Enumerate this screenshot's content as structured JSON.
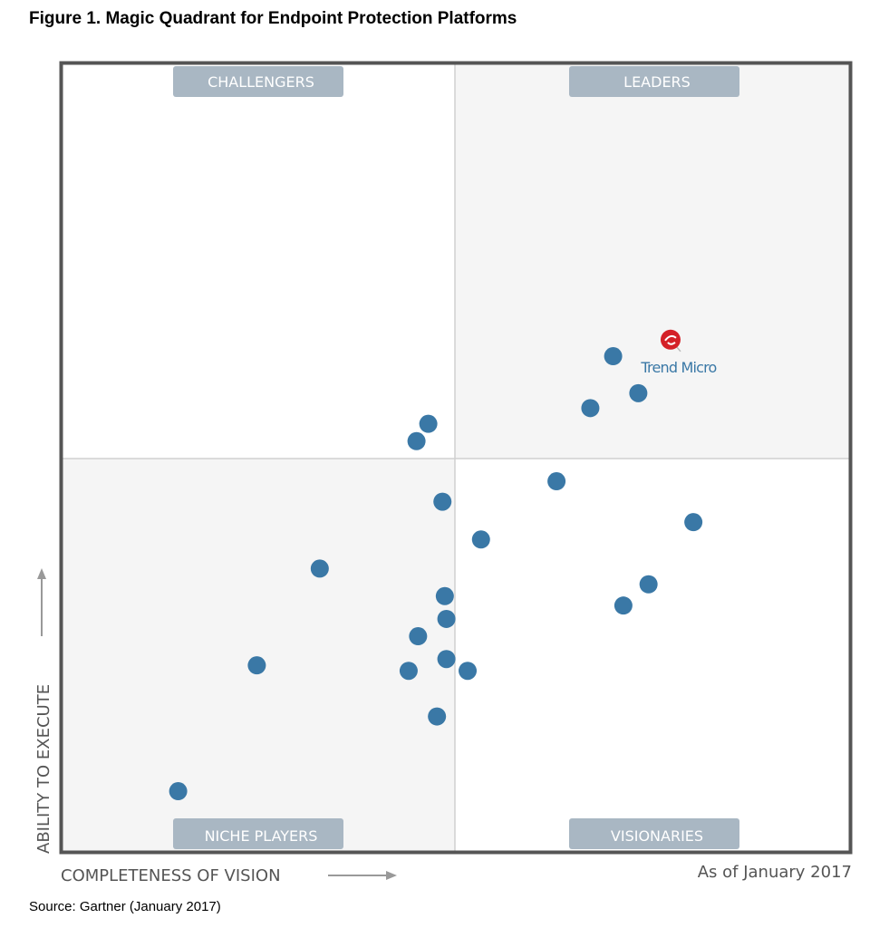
{
  "title": "Figure 1.  Magic Quadrant for Endpoint Protection Platforms",
  "source": "Source: Gartner (January 2017)",
  "colors": {
    "point": "#3a78a6",
    "highlight": "#d42027",
    "label_box": "#a9b7c3",
    "border": "#555555"
  },
  "chart_data": {
    "type": "scatter",
    "title": "Magic Quadrant for Endpoint Protection Platforms",
    "xlabel": "COMPLETENESS OF VISION",
    "ylabel": "ABILITY TO EXECUTE",
    "xlim": [
      0,
      100
    ],
    "ylim": [
      0,
      100
    ],
    "quadrants": {
      "top_left": "CHALLENGERS",
      "top_right": "LEADERS",
      "bottom_left": "NICHE PLAYERS",
      "bottom_right": "VISIONARIES"
    },
    "as_of": "As of January 2017",
    "highlight": {
      "name": "Trend Micro",
      "x": 77.3,
      "y": 65.0
    },
    "points": [
      {
        "x": 70.0,
        "y": 62.9
      },
      {
        "x": 73.2,
        "y": 58.2
      },
      {
        "x": 67.1,
        "y": 56.3
      },
      {
        "x": 46.5,
        "y": 54.3
      },
      {
        "x": 45.0,
        "y": 52.1
      },
      {
        "x": 62.8,
        "y": 47.0
      },
      {
        "x": 48.3,
        "y": 44.4
      },
      {
        "x": 80.2,
        "y": 41.8
      },
      {
        "x": 53.2,
        "y": 39.6
      },
      {
        "x": 32.7,
        "y": 35.9
      },
      {
        "x": 48.6,
        "y": 32.4
      },
      {
        "x": 74.5,
        "y": 33.9
      },
      {
        "x": 71.3,
        "y": 31.2
      },
      {
        "x": 48.8,
        "y": 29.5
      },
      {
        "x": 45.2,
        "y": 27.3
      },
      {
        "x": 24.7,
        "y": 23.6
      },
      {
        "x": 44.0,
        "y": 22.9
      },
      {
        "x": 48.8,
        "y": 24.4
      },
      {
        "x": 51.5,
        "y": 22.9
      },
      {
        "x": 47.6,
        "y": 17.1
      },
      {
        "x": 14.7,
        "y": 7.6
      }
    ]
  }
}
